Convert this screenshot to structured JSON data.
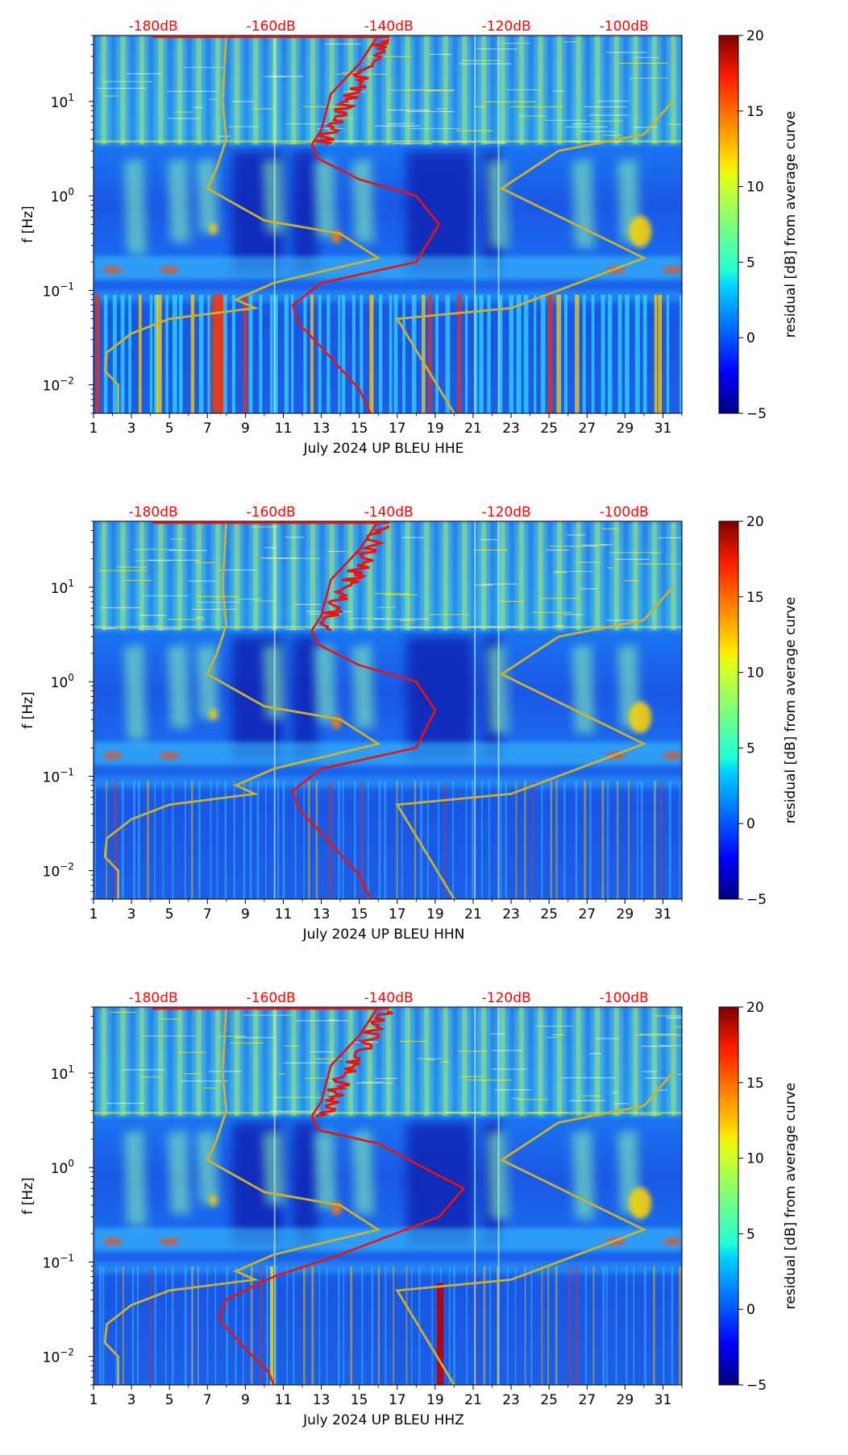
{
  "chart_data": [
    {
      "type": "heatmap",
      "channel": "HHE",
      "xlabel": "July 2024 UP BLEU  HHE",
      "ylabel": "f [Hz]",
      "x_ticks": [
        "1",
        "3",
        "5",
        "7",
        "9",
        "11",
        "13",
        "15",
        "17",
        "19",
        "21",
        "23",
        "25",
        "27",
        "29",
        "31"
      ],
      "xlim": [
        1,
        32
      ],
      "y_ticks": [
        {
          "base": "10",
          "exp": "1",
          "value": 10
        },
        {
          "base": "10",
          "exp": "0",
          "value": 1
        },
        {
          "base": "10",
          "exp": "−1",
          "value": 0.1
        },
        {
          "base": "10",
          "exp": "−2",
          "value": 0.01
        }
      ],
      "ylim": [
        0.005,
        50
      ],
      "top_labels": [
        "-180dB",
        "-160dB",
        "-140dB",
        "-120dB",
        "-100dB"
      ],
      "colorbar": {
        "label": "residual [dB] from average curve",
        "ticks": [
          "20",
          "15",
          "10",
          "5",
          "0",
          "−5"
        ],
        "range": [
          -5,
          20
        ]
      },
      "low_model_curve_color": "#c8b230",
      "average_curve_color": "#ee1111"
    },
    {
      "type": "heatmap",
      "channel": "HHN",
      "xlabel": "July 2024 UP BLEU  HHN",
      "ylabel": "f [Hz]",
      "x_ticks": [
        "1",
        "3",
        "5",
        "7",
        "9",
        "11",
        "13",
        "15",
        "17",
        "19",
        "21",
        "23",
        "25",
        "27",
        "29",
        "31"
      ],
      "xlim": [
        1,
        32
      ],
      "y_ticks": [
        {
          "base": "10",
          "exp": "1",
          "value": 10
        },
        {
          "base": "10",
          "exp": "0",
          "value": 1
        },
        {
          "base": "10",
          "exp": "−1",
          "value": 0.1
        },
        {
          "base": "10",
          "exp": "−2",
          "value": 0.01
        }
      ],
      "ylim": [
        0.005,
        50
      ],
      "top_labels": [
        "-180dB",
        "-160dB",
        "-140dB",
        "-120dB",
        "-100dB"
      ],
      "colorbar": {
        "label": "residual [dB] from average curve",
        "ticks": [
          "20",
          "15",
          "10",
          "5",
          "0",
          "−5"
        ],
        "range": [
          -5,
          20
        ]
      },
      "low_model_curve_color": "#c8b230",
      "average_curve_color": "#ee1111"
    },
    {
      "type": "heatmap",
      "channel": "HHZ",
      "xlabel": "July 2024 UP BLEU  HHZ",
      "ylabel": "f [Hz]",
      "x_ticks": [
        "1",
        "3",
        "5",
        "7",
        "9",
        "11",
        "13",
        "15",
        "17",
        "19",
        "21",
        "23",
        "25",
        "27",
        "29",
        "31"
      ],
      "xlim": [
        1,
        32
      ],
      "y_ticks": [
        {
          "base": "10",
          "exp": "1",
          "value": 10
        },
        {
          "base": "10",
          "exp": "0",
          "value": 1
        },
        {
          "base": "10",
          "exp": "−1",
          "value": 0.1
        },
        {
          "base": "10",
          "exp": "−2",
          "value": 0.01
        }
      ],
      "ylim": [
        0.005,
        50
      ],
      "top_labels": [
        "-180dB",
        "-160dB",
        "-140dB",
        "-120dB",
        "-100dB"
      ],
      "colorbar": {
        "label": "residual [dB] from average curve",
        "ticks": [
          "20",
          "15",
          "10",
          "5",
          "0",
          "−5"
        ],
        "range": [
          -5,
          20
        ]
      },
      "low_model_curve_color": "#c8b230",
      "average_curve_color": "#ee1111"
    }
  ],
  "reference_curves": {
    "low_model": [
      [
        8.0,
        50
      ],
      [
        7.8,
        10
      ],
      [
        8.0,
        4
      ],
      [
        7.5,
        2
      ],
      [
        7.0,
        1.2
      ],
      [
        10,
        0.55
      ],
      [
        14,
        0.4
      ],
      [
        16,
        0.22
      ],
      [
        10.5,
        0.12
      ],
      [
        8.5,
        0.08
      ],
      [
        9.5,
        0.065
      ],
      [
        5,
        0.05
      ],
      [
        3,
        0.035
      ],
      [
        1.7,
        0.022
      ],
      [
        1.6,
        0.014
      ],
      [
        2.3,
        0.01
      ],
      [
        2.3,
        0.005
      ]
    ],
    "high_model": [
      [
        31.5,
        10
      ],
      [
        30,
        4.5
      ],
      [
        25.5,
        3
      ],
      [
        22.5,
        1.2
      ],
      [
        30,
        0.22
      ],
      [
        27,
        0.13
      ],
      [
        23,
        0.065
      ],
      [
        17,
        0.05
      ],
      [
        20,
        0.005
      ]
    ]
  },
  "average_curves": {
    "HHE": [
      [
        16,
        50
      ],
      [
        15,
        25
      ],
      [
        13.5,
        12
      ],
      [
        13,
        5
      ],
      [
        12.5,
        3.5
      ],
      [
        12.8,
        2.5
      ],
      [
        15,
        1.5
      ],
      [
        18,
        1.0
      ],
      [
        19.2,
        0.5
      ],
      [
        18,
        0.2
      ],
      [
        13,
        0.12
      ],
      [
        11.5,
        0.07
      ],
      [
        11.8,
        0.045
      ],
      [
        13,
        0.025
      ],
      [
        14,
        0.015
      ],
      [
        15,
        0.009
      ],
      [
        15.6,
        0.005
      ]
    ],
    "HHN": [
      [
        16,
        50
      ],
      [
        15,
        25
      ],
      [
        13.5,
        12
      ],
      [
        13,
        5
      ],
      [
        12.5,
        3.5
      ],
      [
        12.8,
        2.5
      ],
      [
        15,
        1.5
      ],
      [
        18,
        1.0
      ],
      [
        19,
        0.5
      ],
      [
        18,
        0.2
      ],
      [
        13,
        0.12
      ],
      [
        11.5,
        0.07
      ],
      [
        11.8,
        0.045
      ],
      [
        13,
        0.025
      ],
      [
        14,
        0.015
      ],
      [
        15,
        0.009
      ],
      [
        15.6,
        0.005
      ]
    ],
    "HHZ": [
      [
        16,
        50
      ],
      [
        15,
        25
      ],
      [
        13.5,
        12
      ],
      [
        13,
        5
      ],
      [
        12.5,
        3.5
      ],
      [
        12.8,
        2.5
      ],
      [
        16,
        1.8
      ],
      [
        18,
        1.1
      ],
      [
        20.5,
        0.6
      ],
      [
        19.2,
        0.3
      ],
      [
        14,
        0.12
      ],
      [
        10.5,
        0.07
      ],
      [
        8,
        0.04
      ],
      [
        7.6,
        0.025
      ],
      [
        9,
        0.012
      ],
      [
        10.2,
        0.007
      ],
      [
        10.5,
        0.005
      ]
    ]
  }
}
